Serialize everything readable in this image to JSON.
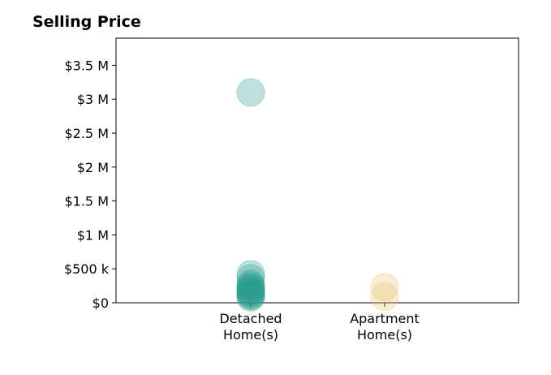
{
  "chart_data": {
    "type": "scatter",
    "title": "Selling Price",
    "categories": [
      "Detached\nHome(s)",
      "Apartment\nHome(s)"
    ],
    "ylim": [
      0,
      3900000
    ],
    "y_ticks": [
      {
        "value": 0,
        "label": "$0"
      },
      {
        "value": 500000,
        "label": "$500 k"
      },
      {
        "value": 1000000,
        "label": "$1 M"
      },
      {
        "value": 1500000,
        "label": "$1.5 M"
      },
      {
        "value": 2000000,
        "label": "$2 M"
      },
      {
        "value": 2500000,
        "label": "$2.5 M"
      },
      {
        "value": 3000000,
        "label": "$3 M"
      },
      {
        "value": 3500000,
        "label": "$3.5 M"
      }
    ],
    "grid": false,
    "legend": "none",
    "series": [
      {
        "category": "Detached\nHome(s)",
        "color": "#2a9d8f",
        "values": [
          3100000,
          420000,
          360000,
          280000,
          250000,
          220000,
          200000,
          180000,
          160000,
          140000,
          120000,
          100000,
          80000
        ]
      },
      {
        "category": "Apartment\nHome(s)",
        "color": "#e9c46a",
        "values": [
          230000,
          90000
        ]
      }
    ]
  }
}
